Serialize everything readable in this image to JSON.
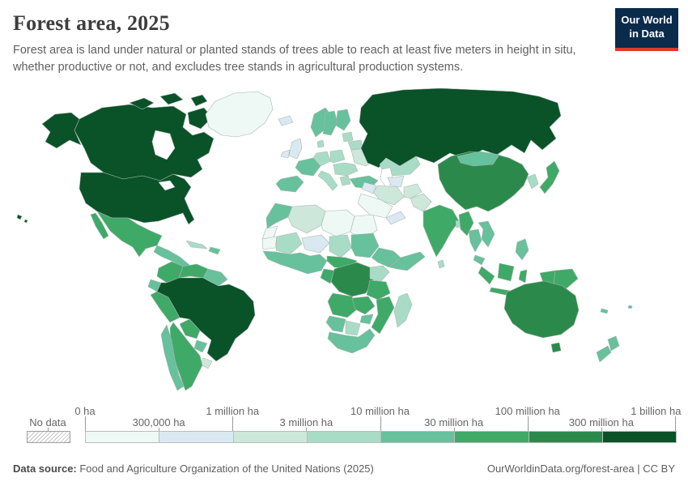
{
  "header": {
    "title": "Forest area, 2025",
    "subtitle_lines": [
      "Forest area is land under natural or planted stands of trees able to reach at least five meters in height in situ,",
      "whether productive or not, and excludes tree stands in agricultural production systems."
    ]
  },
  "logo": {
    "line1": "Our World",
    "line2": "in Data",
    "bg_color": "#0b2b4c",
    "accent_color": "#dc3a2a"
  },
  "legend": {
    "no_data_label": "No data"
  },
  "footer": {
    "source_label": "Data source:",
    "source_text": " Food and Agriculture Organization of the United Nations (2025)",
    "link_text": "OurWorldinData.org/forest-area | CC BY"
  },
  "chart_data": {
    "type": "choropleth_map",
    "title": "Forest area, 2025",
    "unit": "hectares",
    "no_data_label": "No data",
    "bin_edges": [
      "0 ha",
      "300,000 ha",
      "1 million ha",
      "3 million ha",
      "10 million ha",
      "30 million ha",
      "100 million ha",
      "300 million ha",
      "1 billion ha"
    ],
    "bin_colors": [
      "#eef8f5",
      "#dae9f1",
      "#cde7db",
      "#a9dcc7",
      "#66c19c",
      "#3fa968",
      "#2b8a4b",
      "#0a5228"
    ],
    "bin_descriptions": [
      "0-300,000 ha",
      "300,000-1 million ha",
      "1-3 million ha",
      "3-10 million ha",
      "10-30 million ha",
      "30-100 million ha",
      "100-300 million ha",
      "300 million-1 billion ha"
    ],
    "countries": {
      "greenland": 0,
      "libya": 0,
      "egypt": 0,
      "saudi": 0,
      "mauritania": 0,
      "wsahara": 0,
      "iceland": 1,
      "uk": 1,
      "ireland": 1,
      "niger": 1,
      "iraq_syria": 1,
      "centralasia": 1,
      "yemen_oman": 1,
      "algeria": 2,
      "uruguay": 2,
      "iran": 2,
      "afghanistan": 2,
      "pakistan": 2,
      "ukraine": 2,
      "kazakhstan": 3,
      "poland": 3,
      "belarus": 3,
      "balkans": 3,
      "greece": 3,
      "baltics": 3,
      "italy": 3,
      "korea": 3,
      "madagascar": 3,
      "kenya_uganda": 3,
      "botswana": 3,
      "cuba": 3,
      "bangladesh": 3,
      "nepal": 3,
      "chad": 3,
      "mali": 3,
      "srilanka": 3,
      "denmark": 3,
      "germany": 3,
      "norway": 4,
      "sweden": 4,
      "finland": 4,
      "france": 4,
      "iberia": 4,
      "turkey": 4,
      "morocco": 4,
      "sudan": 4,
      "westafrica": 4,
      "ethiopia": 4,
      "somalia": 4,
      "zimbabwe": 4,
      "namibia": 4,
      "southafrica": 4,
      "chile": 4,
      "ecuador": 4,
      "paraguay": 4,
      "guyanas": 4,
      "centralamerica": 4,
      "hispaniola": 4,
      "mongolia": 4,
      "thailand": 4,
      "vietnam_laos": 4,
      "malaysia": 4,
      "philippines": 4,
      "newzealand": 4,
      "newcaledonia": 4,
      "fiji": 4,
      "mexico": 5,
      "colombia": 5,
      "venezuela": 5,
      "peru": 5,
      "bolivia": 5,
      "argentina": 5,
      "india": 5,
      "myanmar": 5,
      "japan": 5,
      "indonesia": 5,
      "png": 5,
      "angola": 5,
      "zambia": 5,
      "tanzania": 5,
      "mozambique": 5,
      "cameroon_car": 5,
      "congo_gabon": 5,
      "china": 6,
      "australia": 6,
      "drc": 6,
      "canada": 7,
      "canada_islands": 7,
      "alaska": 7,
      "usa": 7,
      "hawaii": 7,
      "russia": 7,
      "brazil": 7
    }
  }
}
